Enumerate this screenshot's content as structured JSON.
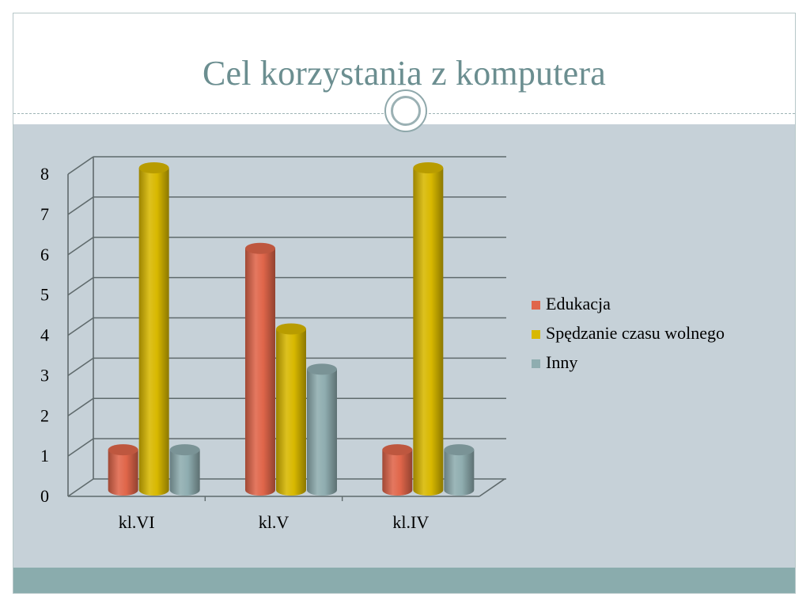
{
  "slide": {
    "title": "Cel korzystania z komputera"
  },
  "colors": {
    "title": "#6b8e90",
    "content_bg": "#c6d1d8",
    "footer_band": "#8aacad"
  },
  "chart_data": {
    "type": "bar",
    "categories": [
      "kl.VI",
      "kl.V",
      "kl.IV"
    ],
    "series": [
      {
        "name": "Edukacja",
        "values": [
          1,
          6,
          1
        ],
        "color": "#e0664a"
      },
      {
        "name": "Spędzanie czasu wolnego",
        "values": [
          8,
          4,
          8
        ],
        "color": "#d8b800"
      },
      {
        "name": "Inny",
        "values": [
          1,
          3,
          1
        ],
        "color": "#8fadb0"
      }
    ],
    "ylim": [
      0,
      8
    ],
    "yticks": [
      "0",
      "1",
      "2",
      "3",
      "4",
      "5",
      "6",
      "7",
      "8"
    ],
    "grid": true,
    "legend_position": "right",
    "style": "3d-cylinder"
  }
}
